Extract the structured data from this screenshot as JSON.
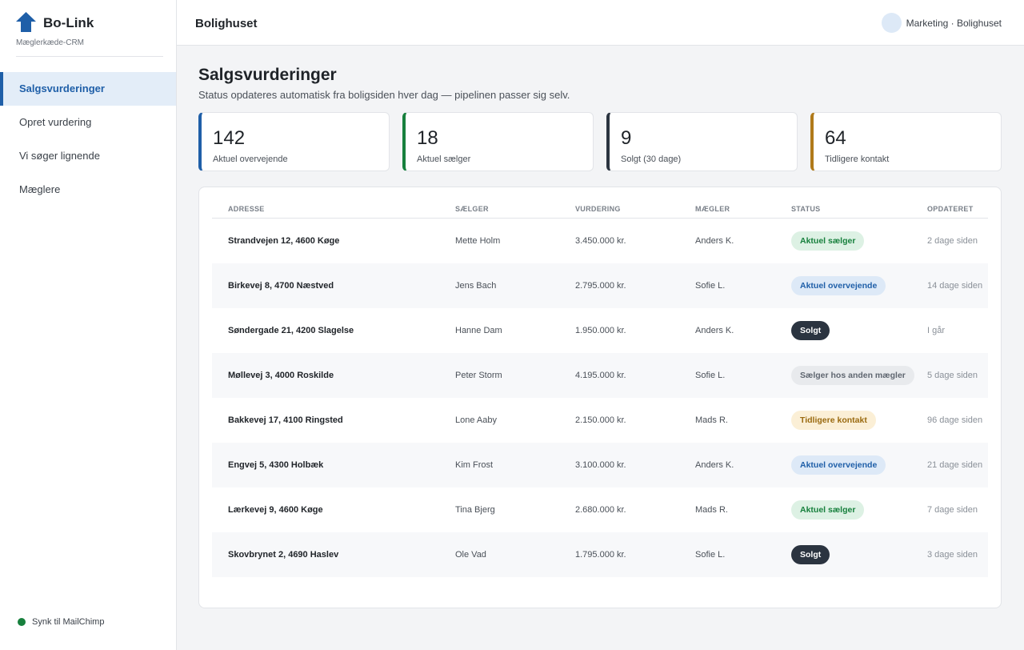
{
  "sidebar": {
    "brand": "Bo-Link",
    "tagline": "Mæglerkæde-CRM",
    "nav": [
      "Salgsvurderinger",
      "Opret vurdering",
      "Vi søger lignende",
      "Mæglere"
    ],
    "sync": "Synk til MailChimp"
  },
  "header": {
    "title": "Bolighuset",
    "user": "Marketing · Bolighuset"
  },
  "page": {
    "title": "Salgsvurderinger",
    "subtitle": "Status opdateres automatisk fra boligsiden hver dag — pipelinen passer sig selv."
  },
  "stats": [
    {
      "value": 142,
      "label": "Aktuel overvejende",
      "color": "#1f5fa8"
    },
    {
      "value": 18,
      "label": "Aktuel sælger",
      "color": "#17803d"
    },
    {
      "value": 9,
      "label": "Solgt (30 dage)",
      "color": "#2b3440"
    },
    {
      "value": 64,
      "label": "Tidligere kontakt",
      "color": "#b07a1a"
    }
  ],
  "table": {
    "columns": [
      "ADRESSE",
      "SÆLGER",
      "VURDERING",
      "MÆGLER",
      "STATUS",
      "OPDATERET"
    ],
    "rows": [
      {
        "address": "Strandvejen 12, 4600 Køge",
        "seller": "Mette Holm",
        "valuation": "3.450.000 kr.",
        "broker": "Anders K.",
        "status": "Aktuel sælger",
        "updated": "2 dage siden",
        "status_color": "#17803d",
        "status_bg": "#ddf1e4"
      },
      {
        "address": "Birkevej 8, 4700 Næstved",
        "seller": "Jens Bach",
        "valuation": "2.795.000 kr.",
        "broker": "Sofie L.",
        "status": "Aktuel overvejende",
        "updated": "14 dage siden",
        "status_color": "#1f5fa8",
        "status_bg": "#dde9f7"
      },
      {
        "address": "Søndergade 21, 4200 Slagelse",
        "seller": "Hanne Dam",
        "valuation": "1.950.000 kr.",
        "broker": "Anders K.",
        "status": "Solgt",
        "updated": "I går",
        "status_color": "#ffffff",
        "status_bg": "#2b3440"
      },
      {
        "address": "Møllevej 3, 4000 Roskilde",
        "seller": "Peter Storm",
        "valuation": "4.195.000 kr.",
        "broker": "Sofie L.",
        "status": "Sælger hos anden mægler",
        "updated": "5 dage siden",
        "status_color": "#5f6670",
        "status_bg": "#e8eaed"
      },
      {
        "address": "Bakkevej 17, 4100 Ringsted",
        "seller": "Lone Aaby",
        "valuation": "2.150.000 kr.",
        "broker": "Mads R.",
        "status": "Tidligere kontakt",
        "updated": "96 dage siden",
        "status_color": "#9a6a10",
        "status_bg": "#fbefd6"
      },
      {
        "address": "Engvej 5, 4300 Holbæk",
        "seller": "Kim Frost",
        "valuation": "3.100.000 kr.",
        "broker": "Anders K.",
        "status": "Aktuel overvejende",
        "updated": "21 dage siden",
        "status_color": "#1f5fa8",
        "status_bg": "#dde9f7"
      },
      {
        "address": "Lærkevej 9, 4600 Køge",
        "seller": "Tina Bjerg",
        "valuation": "2.680.000 kr.",
        "broker": "Mads R.",
        "status": "Aktuel sælger",
        "updated": "7 dage siden",
        "status_color": "#17803d",
        "status_bg": "#ddf1e4"
      },
      {
        "address": "Skovbrynet 2, 4690 Haslev",
        "seller": "Ole Vad",
        "valuation": "1.795.000 kr.",
        "broker": "Sofie L.",
        "status": "Solgt",
        "updated": "3 dage siden",
        "status_color": "#ffffff",
        "status_bg": "#2b3440"
      }
    ]
  }
}
